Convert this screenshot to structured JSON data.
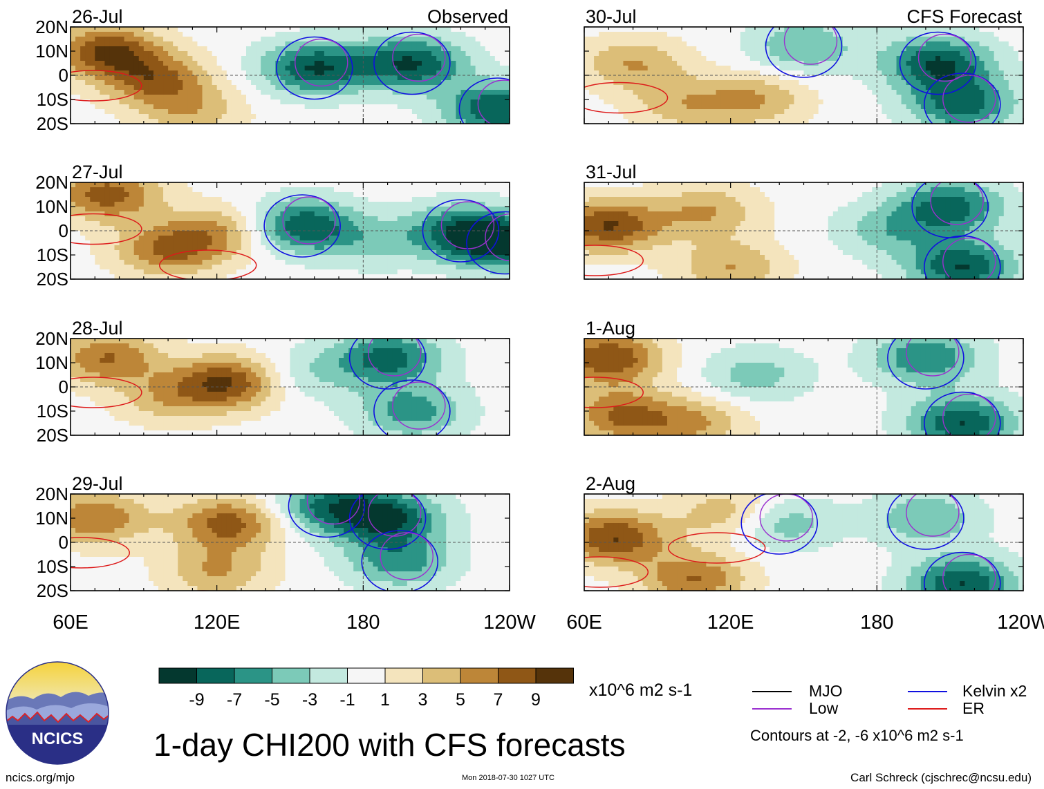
{
  "title": "1-day CHI200 with CFS forecasts",
  "units": "x10^6 m2 s-1",
  "observed_label": "Observed",
  "forecast_label": "CFS Forecast",
  "credit": "Carl Schreck (cjschrec@ncsu.edu)",
  "website": "ncics.org/mjo",
  "timestamp": "Mon 2018-07-30 1027 UTC",
  "logo_text": "NCICS",
  "contour_note": "Contours at -2, -6 x10^6 m2 s-1",
  "legend": {
    "mjo": {
      "label": "MJO",
      "color": "#000000"
    },
    "kelvin": {
      "label": "Kelvin x2",
      "color": "#1010e0"
    },
    "low": {
      "label": "Low",
      "color": "#9a30d0"
    },
    "er": {
      "label": "ER",
      "color": "#dd1a1a"
    }
  },
  "colorbar": {
    "colors": [
      "#04382f",
      "#08665b",
      "#2b9486",
      "#7ccab8",
      "#c3e9df",
      "#f6f6f6",
      "#f4e4bd",
      "#dcbe78",
      "#bd8638",
      "#8f5716",
      "#55330a"
    ],
    "tick_labels": [
      "-9",
      "-7",
      "-5",
      "-3",
      "-1",
      "1",
      "3",
      "5",
      "7",
      "9"
    ]
  },
  "chart_data": {
    "type": "heatmap",
    "variable": "CHI200",
    "x_tick_labels": [
      "60E",
      "120E",
      "180",
      "120W"
    ],
    "y_tick_labels": [
      "20N",
      "10N",
      "0",
      "10S",
      "20S"
    ],
    "xlim": [
      60,
      240
    ],
    "ylim": [
      -20,
      20
    ],
    "panels": [
      {
        "date": "26-Jul",
        "source": "Observed",
        "anomaly_centers": [
          {
            "lon": 75,
            "lat": 10,
            "value": 9
          },
          {
            "lon": 95,
            "lat": -2,
            "value": 7
          },
          {
            "lon": 160,
            "lat": 3,
            "value": -9
          },
          {
            "lon": 200,
            "lat": 5,
            "value": -9
          },
          {
            "lon": 235,
            "lat": -14,
            "value": -9
          },
          {
            "lon": 110,
            "lat": -15,
            "value": 4
          }
        ]
      },
      {
        "date": "27-Jul",
        "source": "Observed",
        "anomaly_centers": [
          {
            "lon": 75,
            "lat": 15,
            "value": 8
          },
          {
            "lon": 100,
            "lat": -8,
            "value": 7
          },
          {
            "lon": 122,
            "lat": 0,
            "value": 5
          },
          {
            "lon": 155,
            "lat": 2,
            "value": -9
          },
          {
            "lon": 185,
            "lat": -5,
            "value": -3
          },
          {
            "lon": 220,
            "lat": 0,
            "value": -7
          },
          {
            "lon": 238,
            "lat": -5,
            "value": -9
          }
        ]
      },
      {
        "date": "28-Jul",
        "source": "Observed",
        "anomaly_centers": [
          {
            "lon": 75,
            "lat": 12,
            "value": 7
          },
          {
            "lon": 125,
            "lat": 2,
            "value": 9
          },
          {
            "lon": 100,
            "lat": -5,
            "value": 4
          },
          {
            "lon": 190,
            "lat": 12,
            "value": -8
          },
          {
            "lon": 200,
            "lat": -10,
            "value": -6
          },
          {
            "lon": 155,
            "lat": 5,
            "value": -3
          }
        ]
      },
      {
        "date": "29-Jul",
        "source": "Observed",
        "anomaly_centers": [
          {
            "lon": 70,
            "lat": 10,
            "value": 7
          },
          {
            "lon": 125,
            "lat": 8,
            "value": 8
          },
          {
            "lon": 120,
            "lat": -12,
            "value": 5
          },
          {
            "lon": 190,
            "lat": 10,
            "value": -9
          },
          {
            "lon": 165,
            "lat": 15,
            "value": -7
          },
          {
            "lon": 195,
            "lat": -8,
            "value": -6
          }
        ]
      },
      {
        "date": "30-Jul",
        "source": "CFS Forecast",
        "anomaly_centers": [
          {
            "lon": 80,
            "lat": 5,
            "value": 5
          },
          {
            "lon": 130,
            "lat": -10,
            "value": 5
          },
          {
            "lon": 150,
            "lat": 12,
            "value": -5
          },
          {
            "lon": 205,
            "lat": 5,
            "value": -9
          },
          {
            "lon": 215,
            "lat": -12,
            "value": -8
          },
          {
            "lon": 100,
            "lat": -12,
            "value": 4
          }
        ]
      },
      {
        "date": "31-Jul",
        "source": "CFS Forecast",
        "anomaly_centers": [
          {
            "lon": 70,
            "lat": 2,
            "value": 9
          },
          {
            "lon": 110,
            "lat": 8,
            "value": 5
          },
          {
            "lon": 120,
            "lat": -15,
            "value": 5
          },
          {
            "lon": 210,
            "lat": 10,
            "value": -8
          },
          {
            "lon": 215,
            "lat": -15,
            "value": -9
          },
          {
            "lon": 185,
            "lat": 0,
            "value": -4
          }
        ]
      },
      {
        "date": "1-Aug",
        "source": "CFS Forecast",
        "anomaly_centers": [
          {
            "lon": 70,
            "lat": 12,
            "value": 9
          },
          {
            "lon": 75,
            "lat": -12,
            "value": 7
          },
          {
            "lon": 105,
            "lat": -15,
            "value": 5
          },
          {
            "lon": 130,
            "lat": 5,
            "value": -4
          },
          {
            "lon": 200,
            "lat": 12,
            "value": -7
          },
          {
            "lon": 215,
            "lat": -15,
            "value": -9
          }
        ]
      },
      {
        "date": "2-Aug",
        "source": "CFS Forecast",
        "anomaly_centers": [
          {
            "lon": 72,
            "lat": 2,
            "value": 9
          },
          {
            "lon": 105,
            "lat": -15,
            "value": 7
          },
          {
            "lon": 120,
            "lat": 12,
            "value": 5
          },
          {
            "lon": 140,
            "lat": 8,
            "value": -5
          },
          {
            "lon": 200,
            "lat": 10,
            "value": -5
          },
          {
            "lon": 215,
            "lat": -17,
            "value": -9
          }
        ]
      }
    ]
  }
}
